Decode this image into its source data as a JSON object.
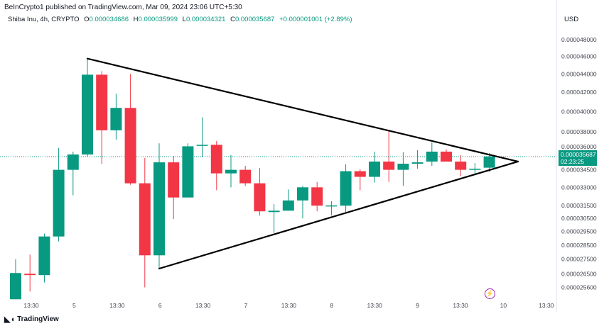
{
  "header": {
    "published": "BeInCrypto1 published on TradingView.com, Mar 09, 2024 23:06 UTC+5:30",
    "symbol": "Shiba Inu, 4h, CRYPTO",
    "o_label": "O",
    "o": "0.000034686",
    "h_label": "H",
    "h": "0.000035999",
    "l_label": "L",
    "l": "0.000034321",
    "c_label": "C",
    "c": "0.000035687",
    "change": "+0.000001001 (+2.89%)"
  },
  "currency": "USD",
  "last_price": {
    "value": "0.000035687",
    "countdown": "02:23:25"
  },
  "logo_text": "TradingView",
  "icons": {
    "alert": "lightning-icon",
    "logo": "tradingview-logo-icon"
  },
  "colors": {
    "up": "#089981",
    "down": "#f23645",
    "trendline": "#000000"
  },
  "chart_data": {
    "type": "candlestick",
    "scale": "log",
    "ylim": [
      2.54e-05,
      4.9e-05
    ],
    "grid": false,
    "y_ticks": [
      "0.000048000",
      "0.000046000",
      "0.000044000",
      "0.000042000",
      "0.000040000",
      "0.000038000",
      "0.000036000",
      "0.000034500",
      "0.000033000",
      "0.000031500",
      "0.000030500",
      "0.000029500",
      "0.000028500",
      "0.000027500",
      "0.000026500",
      "0.000025600"
    ],
    "x_ticks": [
      "13:30",
      "5",
      "13:30",
      "6",
      "13:30",
      "7",
      "13:30",
      "8",
      "13:30",
      "9",
      "13:30",
      "10",
      "13:30"
    ],
    "candles": [
      [
        2.484e-05,
        2.75e-05,
        2.484e-05,
        2.655e-05
      ],
      [
        2.65e-05,
        2.782e-05,
        2.533e-05,
        2.641e-05
      ],
      [
        2.641e-05,
        2.934e-05,
        2.592e-05,
        2.913e-05
      ],
      [
        2.913e-05,
        3.648e-05,
        2.877e-05,
        3.45e-05
      ],
      [
        3.45e-05,
        3.613e-05,
        3.234e-05,
        3.587e-05
      ],
      [
        3.587e-05,
        4.575e-05,
        3.568e-05,
        4.392e-05
      ],
      [
        4.392e-05,
        4.432e-05,
        3.504e-05,
        3.814e-05
      ],
      [
        3.814e-05,
        4.185e-05,
        3.725e-05,
        4.037e-05
      ],
      [
        4.037e-05,
        4.4e-05,
        3.322e-05,
        3.334e-05
      ],
      [
        3.334e-05,
        3.555e-05,
        2.56e-05,
        2.777e-05
      ],
      [
        2.777e-05,
        3.69e-05,
        2.685e-05,
        3.516e-05
      ],
      [
        3.516e-05,
        3.574e-05,
        3.045e-05,
        3.216e-05
      ],
      [
        3.216e-05,
        3.69e-05,
        3.216e-05,
        3.662e-05
      ],
      [
        3.669e-05,
        3.942e-05,
        3.562e-05,
        3.676e-05
      ],
      [
        3.676e-05,
        3.711e-05,
        3.276e-05,
        3.419e-05
      ],
      [
        3.419e-05,
        3.581e-05,
        3.3e-05,
        3.45e-05
      ],
      [
        3.45e-05,
        3.485e-05,
        3.312e-05,
        3.334e-05
      ],
      [
        3.334e-05,
        3.466e-05,
        3.072e-05,
        3.105e-05
      ],
      [
        3.099e-05,
        3.162e-05,
        2.939e-05,
        3.11e-05
      ],
      [
        3.11e-05,
        3.282e-05,
        3.11e-05,
        3.192e-05
      ],
      [
        3.192e-05,
        3.312e-05,
        3.05e-05,
        3.3e-05
      ],
      [
        3.3e-05,
        3.346e-05,
        3.105e-05,
        3.15e-05
      ],
      [
        3.15e-05,
        3.186e-05,
        3.072e-05,
        3.152e-05
      ],
      [
        3.15e-05,
        3.498e-05,
        3.099e-05,
        3.438e-05
      ],
      [
        3.438e-05,
        3.454e-05,
        3.276e-05,
        3.389e-05
      ],
      [
        3.389e-05,
        3.613e-05,
        3.34e-05,
        3.523e-05
      ],
      [
        3.523e-05,
        3.814e-05,
        3.346e-05,
        3.45e-05
      ],
      [
        3.45e-05,
        3.607e-05,
        3.312e-05,
        3.504e-05
      ],
      [
        3.504e-05,
        3.627e-05,
        3.46e-05,
        3.516e-05
      ],
      [
        3.523e-05,
        3.697e-05,
        3.485e-05,
        3.613e-05
      ],
      [
        3.613e-05,
        3.634e-05,
        3.523e-05,
        3.523e-05
      ],
      [
        3.523e-05,
        3.581e-05,
        3.395e-05,
        3.45e-05
      ],
      [
        3.45e-05,
        3.51e-05,
        3.413e-05,
        3.46e-05
      ],
      [
        3.4686e-05,
        3.5999e-05,
        3.4321e-05,
        3.5687e-05
      ]
    ],
    "trendlines": [
      {
        "from": [
          5,
          4.575e-05
        ],
        "to": [
          35,
          3.523e-05
        ]
      },
      {
        "from": [
          10,
          2.685e-05
        ],
        "to": [
          35,
          3.523e-05
        ]
      }
    ]
  }
}
